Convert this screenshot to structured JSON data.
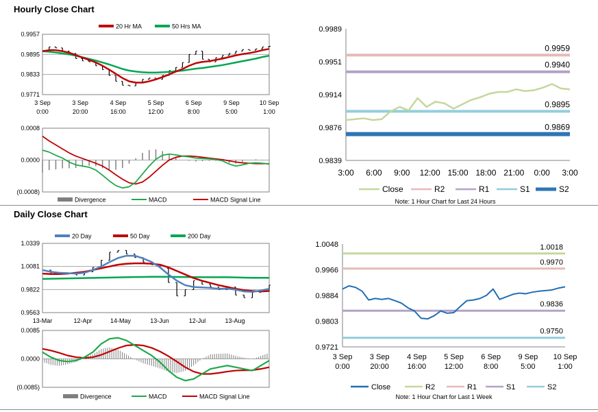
{
  "sections": {
    "hourly_title": "Hourly Close Chart",
    "daily_title": "Daily Close Chart"
  },
  "colors": {
    "ma_short": "#c00000",
    "ma_long": "#00a651",
    "ma20_daily": "#4f81bd",
    "macd": "#1fa84a",
    "signal": "#c00000",
    "divergence": "#7f7f7f",
    "close_hourly": "#c4d79b",
    "r2": "#c4d79b",
    "r1": "#e6b9b8",
    "r2_hourly": "#e6b9b8",
    "r1_hourly": "#b3a2c7",
    "s1_hourly": "#93cddd",
    "s2_hourly": "#2e75b6",
    "close_daily": "#1f6eb5",
    "s1_daily": "#b3a2c7",
    "s2_daily": "#93cddd"
  },
  "chart_data": [
    {
      "id": "hourly_price",
      "type": "line",
      "legend": [
        "20 Hr MA",
        "50 Hrs MA"
      ],
      "ylim": [
        0.9771,
        0.9957
      ],
      "yticks": [
        "0.9957",
        "0.9895",
        "0.9833",
        "0.9771"
      ],
      "xticks": [
        [
          "3 Sep",
          "0:00"
        ],
        [
          "3 Sep",
          "20:00"
        ],
        [
          "4 Sep",
          "16:00"
        ],
        [
          "5 Sep",
          "12:00"
        ],
        [
          "6 Sep",
          "8:00"
        ],
        [
          "9 Sep",
          "5:00"
        ],
        [
          "10 Sep",
          "1:00"
        ]
      ],
      "close": [
        0.9905,
        0.9918,
        0.9915,
        0.9905,
        0.9898,
        0.9882,
        0.9875,
        0.9872,
        0.986,
        0.9848,
        0.983,
        0.9812,
        0.98,
        0.9798,
        0.9808,
        0.9818,
        0.9822,
        0.9818,
        0.983,
        0.9845,
        0.9855,
        0.987,
        0.9895,
        0.9905,
        0.988,
        0.9872,
        0.9885,
        0.9892,
        0.9898,
        0.9905,
        0.991,
        0.9908,
        0.9912,
        0.9918,
        0.992
      ],
      "ma20": [
        0.9905,
        0.9908,
        0.9908,
        0.9905,
        0.99,
        0.9893,
        0.9885,
        0.9878,
        0.987,
        0.986,
        0.9848,
        0.9835,
        0.9822,
        0.9812,
        0.9808,
        0.9808,
        0.9812,
        0.9818,
        0.9825,
        0.9833,
        0.9842,
        0.985,
        0.986,
        0.9868,
        0.9872,
        0.9874,
        0.9878,
        0.9882,
        0.9887,
        0.9892,
        0.9896,
        0.9899,
        0.9903,
        0.9908,
        0.9912
      ],
      "ma50": [
        0.9905,
        0.9903,
        0.9901,
        0.9898,
        0.9895,
        0.9891,
        0.9886,
        0.9881,
        0.9876,
        0.987,
        0.9864,
        0.9857,
        0.985,
        0.9845,
        0.9842,
        0.984,
        0.9839,
        0.9839,
        0.984,
        0.9841,
        0.9843,
        0.9845,
        0.9848,
        0.9851,
        0.9853,
        0.9856,
        0.9859,
        0.9862,
        0.9866,
        0.987,
        0.9874,
        0.9878,
        0.9882,
        0.9887,
        0.9891
      ]
    },
    {
      "id": "hourly_macd",
      "type": "line",
      "legend": [
        "Divergence",
        "MACD",
        "MACD Signal Line"
      ],
      "ylim": [
        -0.0008,
        0.0008
      ],
      "yticks": [
        "0.0008",
        "0.0000",
        "(0.0008)"
      ],
      "macd": [
        0.00025,
        0.0002,
        0.00012,
        5e-05,
        -5e-05,
        -0.00012,
        -0.00015,
        -0.00018,
        -0.00025,
        -0.00038,
        -0.00052,
        -0.00064,
        -0.0007,
        -0.00067,
        -0.00055,
        -0.00035,
        -0.00015,
        2e-05,
        0.00012,
        0.00015,
        0.00013,
        0.0001,
        8e-05,
        5e-05,
        4e-05,
        3e-05,
        1e-05,
        -2e-05,
        -0.0001,
        -0.00015,
        -0.00012,
        -8e-05,
        -7e-05,
        -8e-05,
        -0.0001
      ],
      "signal": [
        0.0006,
        0.00048,
        0.00038,
        0.00028,
        0.00018,
        0.0001,
        4e-05,
        -2e-05,
        -8e-05,
        -0.00015,
        -0.00025,
        -0.00037,
        -0.00048,
        -0.00057,
        -0.0006,
        -0.00055,
        -0.00043,
        -0.00028,
        -0.00013,
        0.0,
        7e-05,
        0.0001,
        0.0001,
        9e-05,
        7e-05,
        5e-05,
        3e-05,
        1e-05,
        -2e-05,
        -5e-05,
        -7e-05,
        -8e-05,
        -9e-05,
        -9e-05,
        -9e-05
      ]
    },
    {
      "id": "hourly_levels",
      "type": "line",
      "legend": [
        "Close",
        "R2",
        "R1",
        "S1",
        "S2"
      ],
      "ylim": [
        0.9839,
        0.9989
      ],
      "yticks": [
        "0.9989",
        "0.9951",
        "0.9914",
        "0.9876",
        "0.9839"
      ],
      "xticks": [
        "3:00",
        "6:00",
        "9:00",
        "12:00",
        "15:00",
        "18:00",
        "21:00",
        "0:00",
        "3:00"
      ],
      "levels": {
        "R2": 0.9959,
        "R1": 0.994,
        "S1": 0.9895,
        "S2": 0.9869
      },
      "level_labels": {
        "R2": "0.9959",
        "R1": "0.9940",
        "S1": "0.9895",
        "S2": "0.9869"
      },
      "close": [
        0.9885,
        0.9886,
        0.9887,
        0.9885,
        0.9886,
        0.9895,
        0.99,
        0.9896,
        0.991,
        0.99,
        0.9906,
        0.9904,
        0.9898,
        0.9903,
        0.9908,
        0.9911,
        0.9915,
        0.9917,
        0.9917,
        0.992,
        0.9918,
        0.9919,
        0.9922,
        0.9926,
        0.9921,
        0.992
      ],
      "note": "Note: 1 Hour Chart for Last 24 Hours"
    },
    {
      "id": "daily_price",
      "type": "line",
      "legend": [
        "20 Day",
        "50 Day",
        "200 Day"
      ],
      "ylim": [
        0.9563,
        1.0339
      ],
      "yticks": [
        "1.0339",
        "1.0081",
        "0.9822",
        "0.9563"
      ],
      "xticks": [
        "13-Mar",
        "12-Apr",
        "14-May",
        "13-Jun",
        "12-Jul",
        "13-Aug"
      ],
      "close": [
        1.004,
        0.999,
        1.001,
        1.0,
        0.9985,
        1.002,
        1.007,
        1.015,
        1.024,
        1.026,
        1.022,
        1.018,
        1.013,
        1.01,
        1.006,
        0.99,
        0.975,
        0.982,
        0.992,
        0.988,
        0.985,
        0.982,
        0.985,
        0.976,
        0.973,
        0.979,
        0.98,
        0.987
      ],
      "ma20": [
        1.004,
        1.002,
        1.001,
        1.0005,
        1.0,
        1.001,
        1.004,
        1.008,
        1.013,
        1.0175,
        1.02,
        1.02,
        1.017,
        1.013,
        1.007,
        0.999,
        0.992,
        0.987,
        0.985,
        0.9845,
        0.984,
        0.983,
        0.9832,
        0.982,
        0.98,
        0.9795,
        0.981,
        0.983
      ],
      "ma50": [
        1.0,
        0.9995,
        0.9995,
        1.0,
        1.001,
        1.002,
        1.004,
        1.006,
        1.008,
        1.01,
        1.011,
        1.0115,
        1.0115,
        1.011,
        1.01,
        1.007,
        1.003,
        0.999,
        0.995,
        0.992,
        0.9895,
        0.987,
        0.985,
        0.983,
        0.9815,
        0.9805,
        0.98,
        0.9805
      ],
      "ma200": [
        0.994,
        0.9942,
        0.9944,
        0.9946,
        0.9948,
        0.995,
        0.9952,
        0.9954,
        0.9956,
        0.9958,
        0.996,
        0.9962,
        0.9963,
        0.9964,
        0.9964,
        0.9964,
        0.9963,
        0.9962,
        0.9961,
        0.996,
        0.996,
        0.996,
        0.996,
        0.9958,
        0.9955,
        0.9953,
        0.9953,
        0.9953
      ]
    },
    {
      "id": "daily_macd",
      "type": "line",
      "legend": [
        "Divergence",
        "MACD",
        "MACD Signal Line"
      ],
      "ylim": [
        -0.0085,
        0.0085
      ],
      "yticks": [
        "0.0085",
        "0.0000",
        "(0.0085)"
      ],
      "macd": [
        0.002,
        0.0005,
        -0.0005,
        -0.0008,
        -0.0005,
        0.0005,
        0.002,
        0.0045,
        0.006,
        0.0063,
        0.0055,
        0.004,
        0.0025,
        0.001,
        -0.001,
        -0.0035,
        -0.0055,
        -0.0065,
        -0.006,
        -0.0045,
        -0.003,
        -0.0025,
        -0.002,
        -0.0025,
        -0.003,
        -0.0035,
        -0.002,
        -0.0005
      ],
      "signal": [
        0.003,
        0.0025,
        0.0018,
        0.001,
        0.0005,
        0.0003,
        0.0005,
        0.0012,
        0.0022,
        0.0032,
        0.004,
        0.0042,
        0.004,
        0.0033,
        0.0022,
        0.0008,
        -0.0008,
        -0.0025,
        -0.0038,
        -0.0045,
        -0.0045,
        -0.0042,
        -0.0038,
        -0.0035,
        -0.0034,
        -0.0034,
        -0.003,
        -0.0025
      ]
    },
    {
      "id": "daily_levels",
      "type": "line",
      "legend": [
        "Close",
        "R2",
        "R1",
        "S1",
        "S2"
      ],
      "ylim": [
        0.9721,
        1.0048
      ],
      "yticks": [
        "1.0048",
        "0.9966",
        "0.9884",
        "0.9803",
        "0.9721"
      ],
      "xticks": [
        [
          "3 Sep",
          "0:00"
        ],
        [
          "3 Sep",
          "20:00"
        ],
        [
          "4 Sep",
          "16:00"
        ],
        [
          "5 Sep",
          "12:00"
        ],
        [
          "6 Sep",
          "8:00"
        ],
        [
          "9 Sep",
          "5:00"
        ],
        [
          "10 Sep",
          "1:00"
        ]
      ],
      "levels": {
        "R2": 1.0018,
        "R1": 0.997,
        "S1": 0.9836,
        "S2": 0.975
      },
      "level_labels": {
        "R2": "1.0018",
        "R1": "0.9970",
        "S1": "0.9836",
        "S2": "0.9750"
      },
      "close": [
        0.9905,
        0.9915,
        0.991,
        0.9898,
        0.987,
        0.9875,
        0.9872,
        0.9875,
        0.9868,
        0.986,
        0.9845,
        0.9835,
        0.9812,
        0.981,
        0.982,
        0.9835,
        0.9828,
        0.983,
        0.985,
        0.9868,
        0.987,
        0.9875,
        0.9885,
        0.9905,
        0.9872,
        0.988,
        0.9888,
        0.9892,
        0.989,
        0.9895,
        0.9898,
        0.99,
        0.9902,
        0.9908,
        0.9912
      ],
      "note": "Note: 1 Hour Chart for Last 1 Week"
    }
  ]
}
